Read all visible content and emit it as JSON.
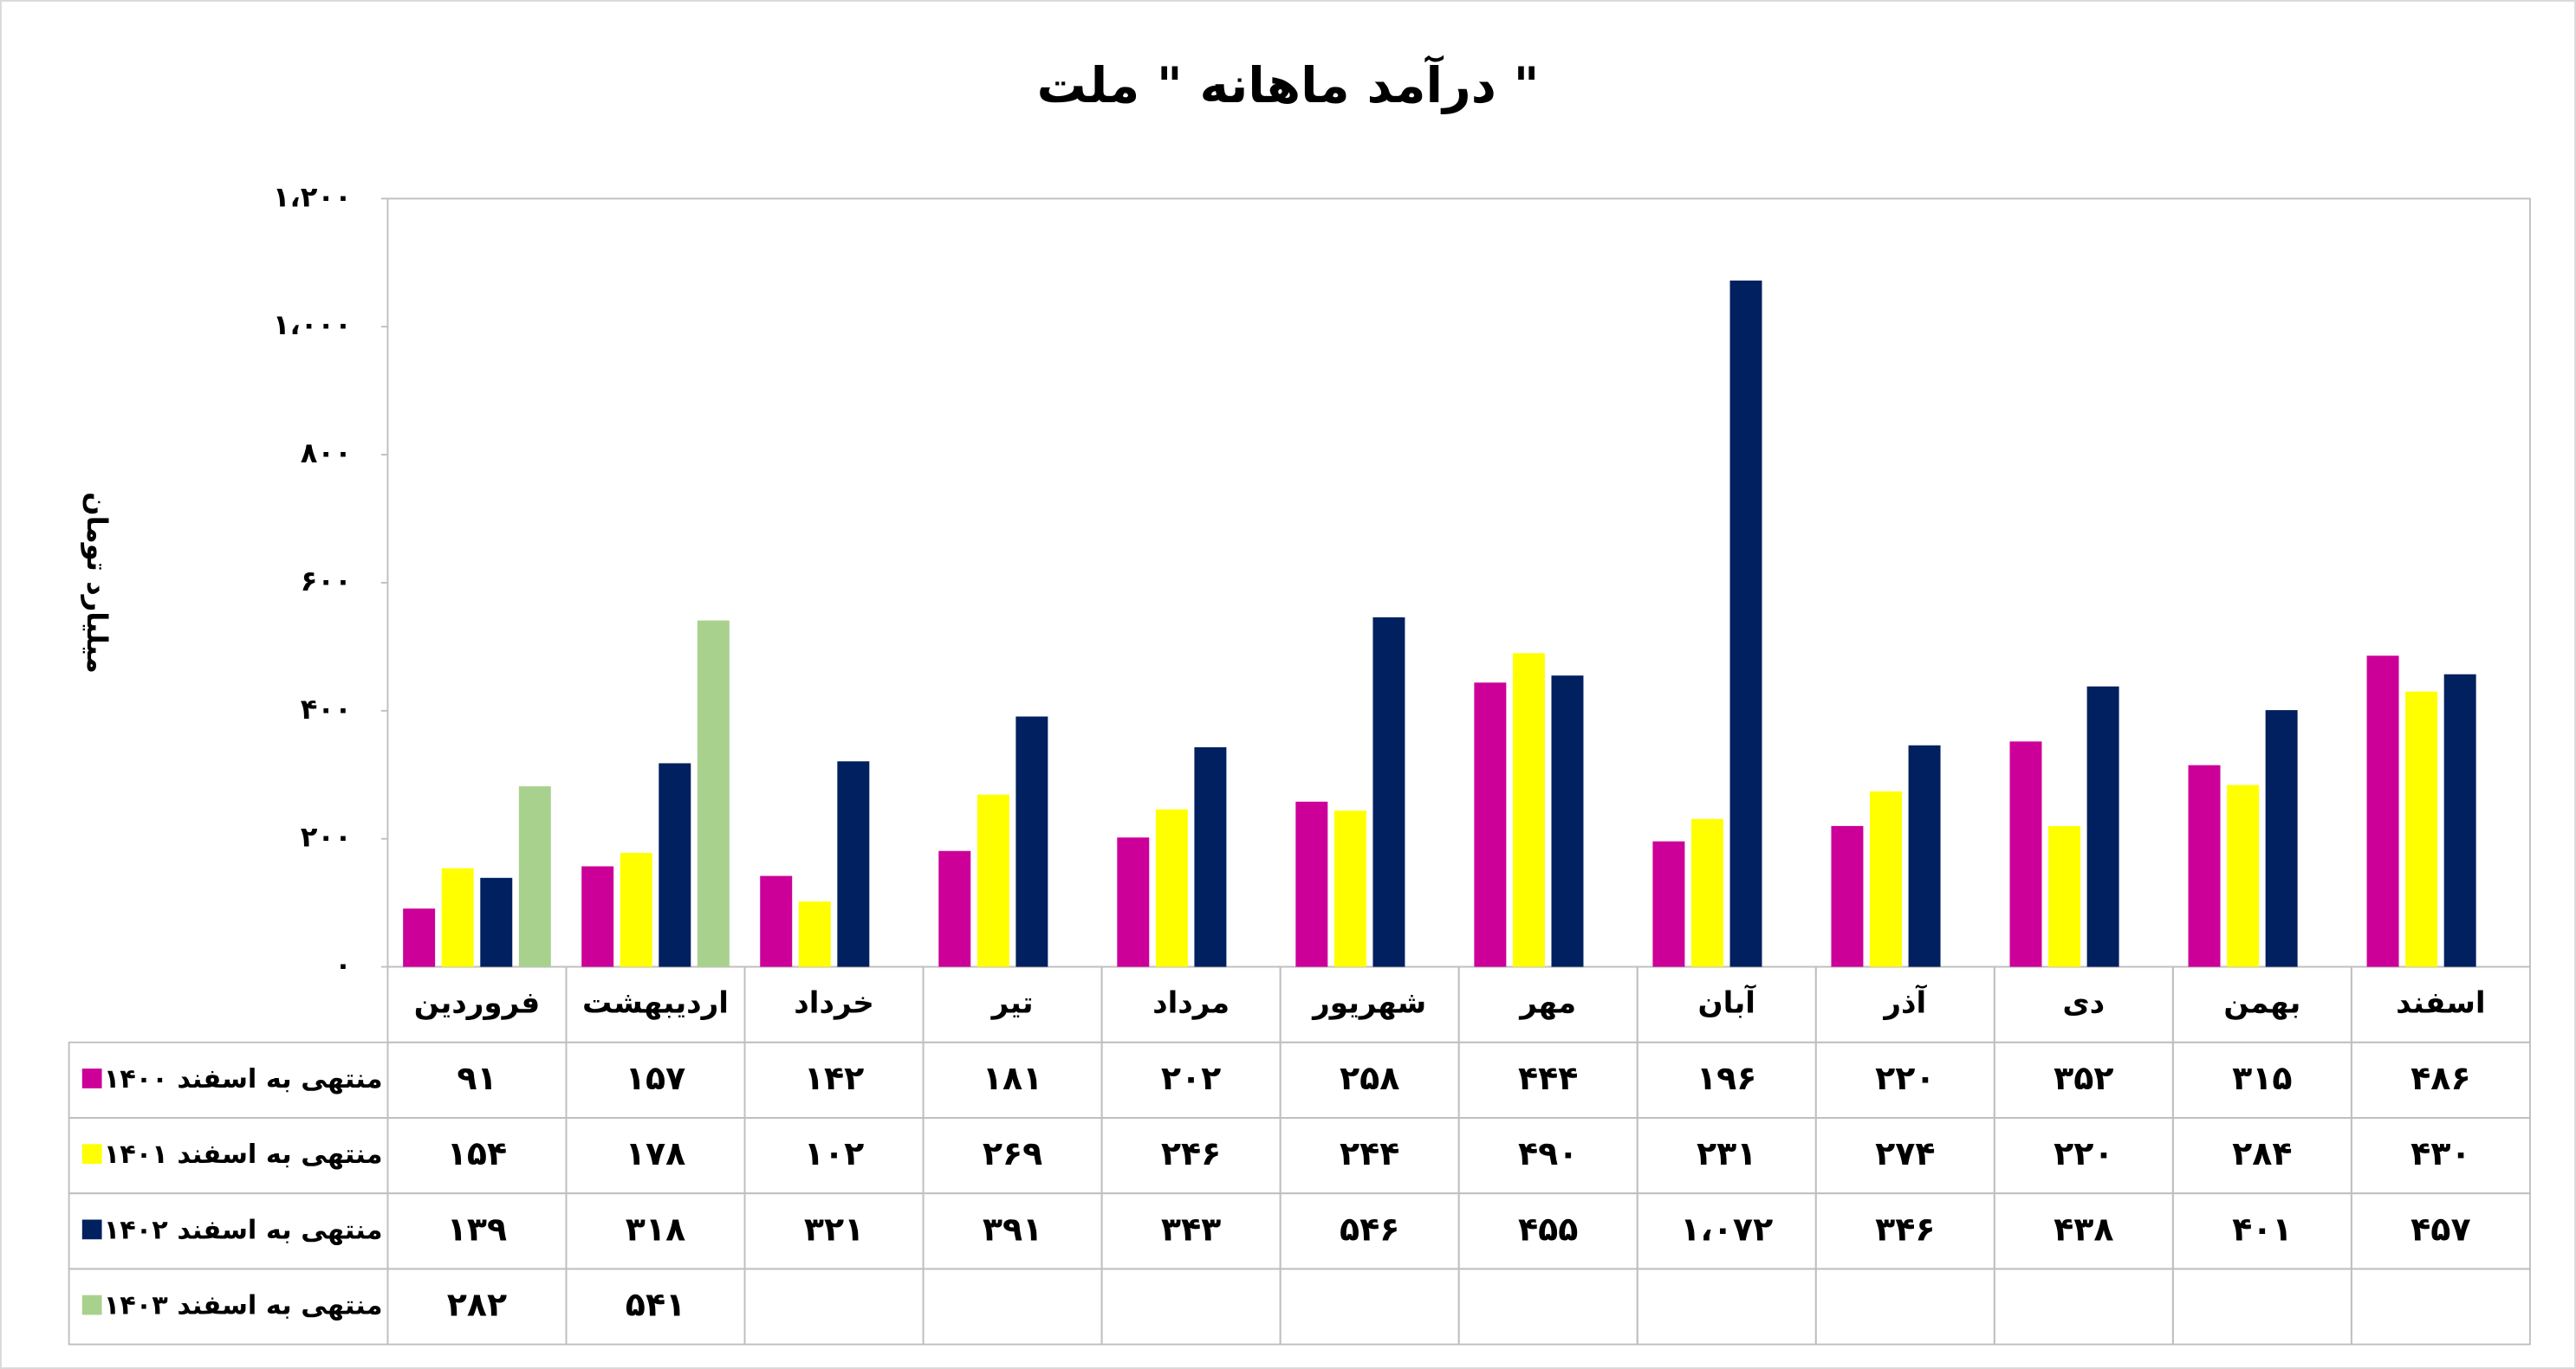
{
  "chart_data": {
    "type": "bar",
    "title": "درآمد ماهانه \" ملت \"",
    "y_label": "میلیارد تومان",
    "categories": [
      "فروردین",
      "اردیبهشت",
      "خرداد",
      "تیر",
      "مرداد",
      "شهریور",
      "مهر",
      "آبان",
      "آذر",
      "دی",
      "بهمن",
      "اسفند"
    ],
    "series": [
      {
        "name": "منتهی به اسفند ۱۴۰۰",
        "color": "#cc0099",
        "values": [
          91,
          157,
          142,
          181,
          202,
          258,
          444,
          196,
          220,
          352,
          315,
          486
        ],
        "value_labels": [
          "۹۱",
          "۱۵۷",
          "۱۴۲",
          "۱۸۱",
          "۲۰۲",
          "۲۵۸",
          "۴۴۴",
          "۱۹۶",
          "۲۲۰",
          "۳۵۲",
          "۳۱۵",
          "۴۸۶"
        ]
      },
      {
        "name": "منتهی به اسفند ۱۴۰۱",
        "color": "#ffff00",
        "values": [
          154,
          178,
          102,
          269,
          246,
          244,
          490,
          231,
          274,
          220,
          284,
          430
        ],
        "value_labels": [
          "۱۵۴",
          "۱۷۸",
          "۱۰۲",
          "۲۶۹",
          "۲۴۶",
          "۲۴۴",
          "۴۹۰",
          "۲۳۱",
          "۲۷۴",
          "۲۲۰",
          "۲۸۴",
          "۴۳۰"
        ]
      },
      {
        "name": "منتهی به اسفند ۱۴۰۲",
        "color": "#002060",
        "values": [
          139,
          318,
          321,
          391,
          343,
          546,
          455,
          1072,
          346,
          438,
          401,
          457
        ],
        "value_labels": [
          "۱۳۹",
          "۳۱۸",
          "۳۲۱",
          "۳۹۱",
          "۳۴۳",
          "۵۴۶",
          "۴۵۵",
          "۱،۰۷۲",
          "۳۴۶",
          "۴۳۸",
          "۴۰۱",
          "۴۵۷"
        ]
      },
      {
        "name": "منتهی به اسفند ۱۴۰۳",
        "color": "#a9d18e",
        "values": [
          282,
          541,
          null,
          null,
          null,
          null,
          null,
          null,
          null,
          null,
          null,
          null
        ],
        "value_labels": [
          "۲۸۲",
          "۵۴۱",
          null,
          null,
          null,
          null,
          null,
          null,
          null,
          null,
          null,
          null
        ]
      }
    ],
    "ylim": [
      0,
      1200
    ],
    "yticks": [
      {
        "value": 0,
        "label": "۰"
      },
      {
        "value": 200,
        "label": "۲۰۰"
      },
      {
        "value": 400,
        "label": "۴۰۰"
      },
      {
        "value": 600,
        "label": "۶۰۰"
      },
      {
        "value": 800,
        "label": "۸۰۰"
      },
      {
        "value": 1000,
        "label": "۱،۰۰۰"
      },
      {
        "value": 1200,
        "label": "۱،۲۰۰"
      }
    ]
  }
}
